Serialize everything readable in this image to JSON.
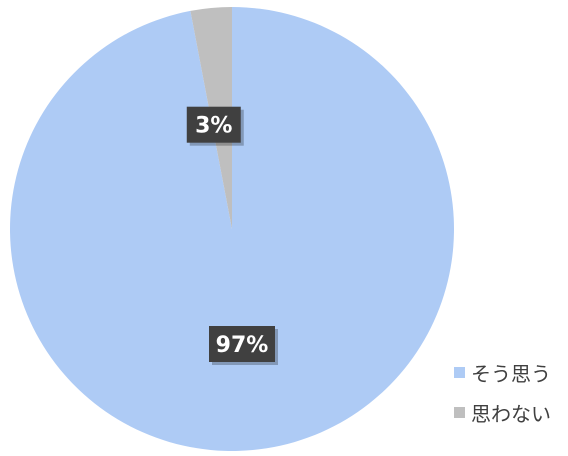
{
  "chart_data": {
    "type": "pie",
    "categories": [
      "そう思う",
      "思わない"
    ],
    "values": [
      97,
      3
    ],
    "value_labels": [
      "97%",
      "3%"
    ],
    "colors": [
      "#aecbf5",
      "#bfbfbf"
    ],
    "legend_position": "bottom-right"
  }
}
